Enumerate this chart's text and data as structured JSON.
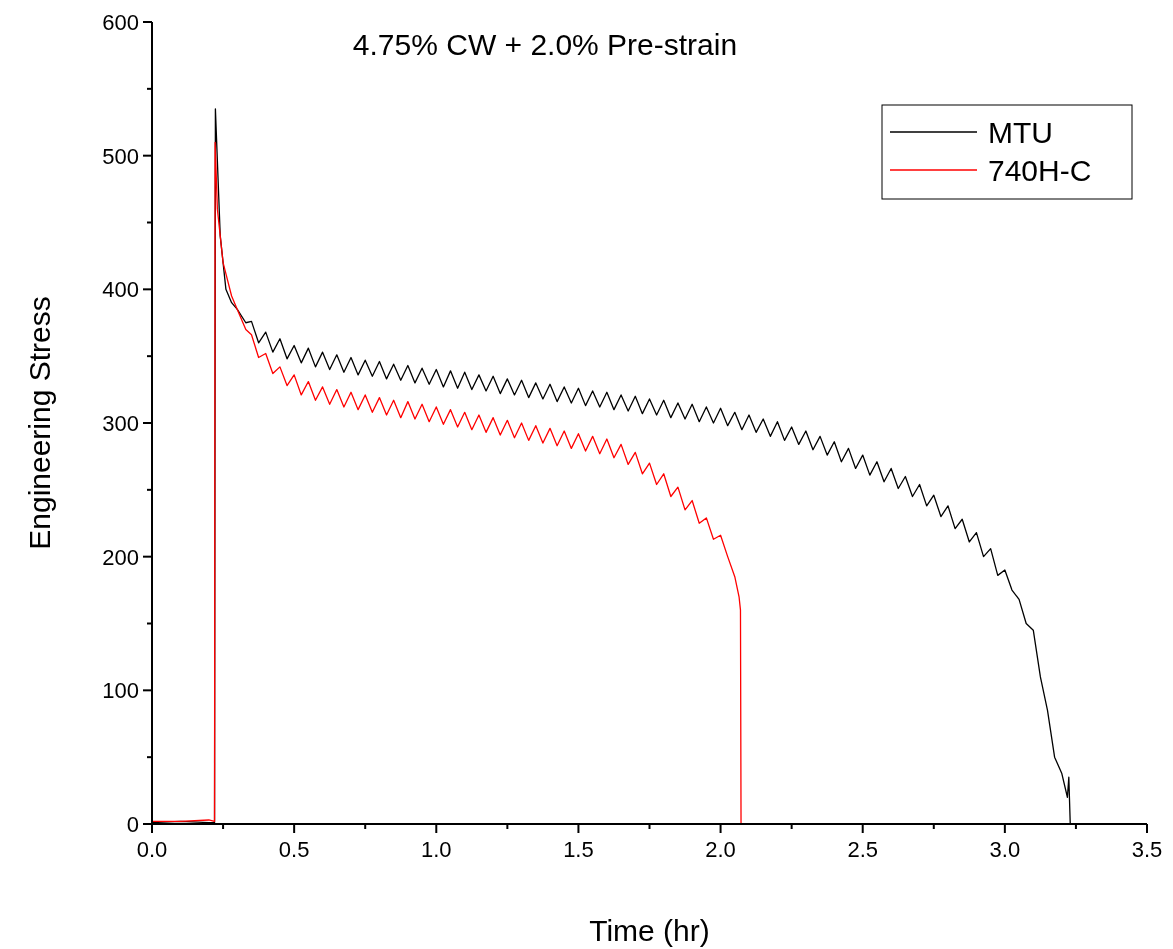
{
  "chart_data": {
    "type": "line",
    "title": "4.75% CW + 2.0% Pre-strain",
    "xlabel": "Time (hr)",
    "ylabel": "Engineering Stress",
    "xlim": [
      0,
      3.5
    ],
    "ylim": [
      0,
      600
    ],
    "xticks": [
      {
        "value": 0,
        "label": "0.0"
      },
      {
        "value": 0.25,
        "label": null
      },
      {
        "value": 0.5,
        "label": "0.5"
      },
      {
        "value": 0.75,
        "label": null
      },
      {
        "value": 1,
        "label": "1.0"
      },
      {
        "value": 1.25,
        "label": null
      },
      {
        "value": 1.5,
        "label": "1.5"
      },
      {
        "value": 1.75,
        "label": null
      },
      {
        "value": 2,
        "label": "2.0"
      },
      {
        "value": 2.25,
        "label": null
      },
      {
        "value": 2.5,
        "label": "2.5"
      },
      {
        "value": 2.75,
        "label": null
      },
      {
        "value": 3,
        "label": "3.0"
      },
      {
        "value": 3.25,
        "label": null
      },
      {
        "value": 3.5,
        "label": "3.5"
      }
    ],
    "yticks": [
      0,
      {
        "value": 50,
        "label": null
      },
      100,
      {
        "value": 150,
        "label": null
      },
      200,
      {
        "value": 250,
        "label": null
      },
      300,
      {
        "value": 350,
        "label": null
      },
      400,
      {
        "value": 450,
        "label": null
      },
      500,
      {
        "value": 550,
        "label": null
      },
      600
    ],
    "legend": "top right",
    "grid": false,
    "marker": "none",
    "line_style": "solid",
    "series": [
      {
        "name": "MTU",
        "color": "#000000",
        "x": [
          0,
          0.1,
          0.2,
          0.22,
          0.223,
          0.24,
          0.26,
          0.28,
          0.3,
          0.33,
          0.35,
          0.375,
          0.4,
          0.425,
          0.45,
          0.475,
          0.5,
          0.525,
          0.55,
          0.575,
          0.6,
          0.625,
          0.65,
          0.675,
          0.7,
          0.725,
          0.75,
          0.775,
          0.8,
          0.825,
          0.85,
          0.875,
          0.9,
          0.925,
          0.95,
          0.975,
          1.0,
          1.025,
          1.05,
          1.075,
          1.1,
          1.125,
          1.15,
          1.175,
          1.2,
          1.225,
          1.25,
          1.275,
          1.3,
          1.325,
          1.35,
          1.375,
          1.4,
          1.425,
          1.45,
          1.475,
          1.5,
          1.525,
          1.55,
          1.575,
          1.6,
          1.625,
          1.65,
          1.675,
          1.7,
          1.725,
          1.75,
          1.775,
          1.8,
          1.825,
          1.85,
          1.875,
          1.9,
          1.925,
          1.95,
          1.975,
          2.0,
          2.025,
          2.05,
          2.075,
          2.1,
          2.125,
          2.15,
          2.175,
          2.2,
          2.225,
          2.25,
          2.275,
          2.3,
          2.325,
          2.35,
          2.375,
          2.4,
          2.425,
          2.45,
          2.475,
          2.5,
          2.525,
          2.55,
          2.575,
          2.6,
          2.625,
          2.65,
          2.675,
          2.7,
          2.725,
          2.75,
          2.775,
          2.8,
          2.825,
          2.85,
          2.875,
          2.9,
          2.925,
          2.95,
          2.975,
          3.0,
          3.025,
          3.05,
          3.075,
          3.1,
          3.125,
          3.15,
          3.175,
          3.2,
          3.22,
          3.225,
          3.23
        ],
        "values": [
          1,
          2,
          1,
          1,
          535,
          440,
          400,
          390,
          385,
          375,
          376,
          360,
          368,
          353,
          363,
          348,
          358,
          345,
          356,
          342,
          353,
          340,
          351,
          338,
          349,
          336,
          347,
          335,
          346,
          333,
          344,
          332,
          343,
          330,
          341,
          329,
          340,
          327,
          339,
          326,
          338,
          325,
          336,
          324,
          335,
          322,
          333,
          321,
          332,
          319,
          330,
          318,
          329,
          316,
          327,
          315,
          326,
          313,
          324,
          312,
          323,
          310,
          321,
          309,
          320,
          307,
          318,
          306,
          317,
          304,
          315,
          303,
          314,
          301,
          312,
          300,
          311,
          298,
          308,
          295,
          306,
          293,
          303,
          290,
          301,
          287,
          297,
          284,
          294,
          280,
          290,
          276,
          286,
          271,
          281,
          266,
          276,
          261,
          271,
          256,
          266,
          251,
          260,
          245,
          254,
          238,
          246,
          230,
          238,
          221,
          228,
          211,
          218,
          200,
          206,
          186,
          190,
          175,
          168,
          150,
          145,
          110,
          85,
          50,
          38,
          20,
          35,
          0
        ]
      },
      {
        "name": "740H-C",
        "color": "#ff0000",
        "x": [
          0,
          0.1,
          0.2,
          0.22,
          0.222,
          0.23,
          0.25,
          0.28,
          0.3,
          0.33,
          0.35,
          0.375,
          0.4,
          0.425,
          0.45,
          0.475,
          0.5,
          0.525,
          0.55,
          0.575,
          0.6,
          0.625,
          0.65,
          0.675,
          0.7,
          0.725,
          0.75,
          0.775,
          0.8,
          0.825,
          0.85,
          0.875,
          0.9,
          0.925,
          0.95,
          0.975,
          1.0,
          1.025,
          1.05,
          1.075,
          1.1,
          1.125,
          1.15,
          1.175,
          1.2,
          1.225,
          1.25,
          1.275,
          1.3,
          1.325,
          1.35,
          1.375,
          1.4,
          1.425,
          1.45,
          1.475,
          1.5,
          1.525,
          1.55,
          1.575,
          1.6,
          1.625,
          1.65,
          1.675,
          1.7,
          1.725,
          1.75,
          1.775,
          1.8,
          1.825,
          1.85,
          1.875,
          1.9,
          1.925,
          1.95,
          1.975,
          2.0,
          2.025,
          2.05,
          2.065,
          2.07,
          2.072
        ],
        "values": [
          2,
          2,
          3,
          2,
          510,
          460,
          420,
          395,
          385,
          370,
          366,
          349,
          352,
          337,
          342,
          328,
          336,
          321,
          331,
          317,
          327,
          314,
          325,
          312,
          323,
          310,
          321,
          308,
          319,
          306,
          317,
          304,
          316,
          303,
          314,
          301,
          312,
          299,
          310,
          297,
          308,
          295,
          306,
          293,
          304,
          291,
          302,
          289,
          300,
          287,
          298,
          285,
          296,
          283,
          294,
          281,
          292,
          279,
          290,
          277,
          288,
          274,
          284,
          269,
          278,
          262,
          270,
          254,
          262,
          245,
          252,
          235,
          242,
          225,
          229,
          213,
          216,
          200,
          185,
          170,
          160,
          0
        ]
      }
    ]
  }
}
